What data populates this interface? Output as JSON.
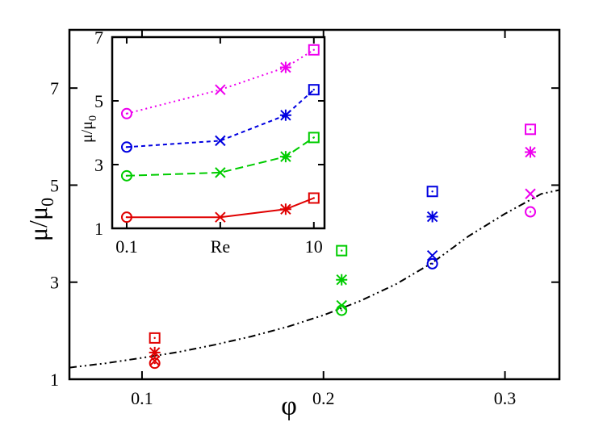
{
  "chart_data": [
    {
      "type": "scatter",
      "title": "",
      "xlabel": "φ",
      "ylabel": "μ/μ",
      "ylabel_subscript": "0",
      "xlim": [
        0.06,
        0.33
      ],
      "ylim": [
        1,
        8.2
      ],
      "xticks": [
        {
          "v": 0.1,
          "label": "0.1"
        },
        {
          "v": 0.2,
          "label": "0.2"
        },
        {
          "v": 0.3,
          "label": "0.3"
        }
      ],
      "yticks": [
        {
          "v": 1,
          "label": "1"
        },
        {
          "v": 3,
          "label": "3"
        },
        {
          "v": 5,
          "label": "5"
        },
        {
          "v": 7,
          "label": "7"
        }
      ],
      "grid": false,
      "legend": "none",
      "series": [
        {
          "color": "#e00000",
          "points": [
            {
              "x": 0.107,
              "y": 1.33,
              "marker": "circle"
            },
            {
              "x": 0.107,
              "y": 1.38,
              "marker": "x"
            },
            {
              "x": 0.107,
              "y": 1.55,
              "marker": "star"
            },
            {
              "x": 0.107,
              "y": 1.85,
              "marker": "square"
            }
          ]
        },
        {
          "color": "#00cc00",
          "points": [
            {
              "x": 0.21,
              "y": 2.42,
              "marker": "circle"
            },
            {
              "x": 0.21,
              "y": 2.52,
              "marker": "x"
            },
            {
              "x": 0.21,
              "y": 3.05,
              "marker": "star"
            },
            {
              "x": 0.21,
              "y": 3.65,
              "marker": "square"
            }
          ]
        },
        {
          "color": "#0000e0",
          "points": [
            {
              "x": 0.26,
              "y": 3.38,
              "marker": "circle"
            },
            {
              "x": 0.26,
              "y": 3.55,
              "marker": "x"
            },
            {
              "x": 0.26,
              "y": 4.35,
              "marker": "star"
            },
            {
              "x": 0.26,
              "y": 4.87,
              "marker": "square"
            }
          ]
        },
        {
          "color": "#ee00ee",
          "points": [
            {
              "x": 0.314,
              "y": 4.45,
              "marker": "circle"
            },
            {
              "x": 0.314,
              "y": 4.82,
              "marker": "x"
            },
            {
              "x": 0.314,
              "y": 5.68,
              "marker": "star"
            },
            {
              "x": 0.314,
              "y": 6.15,
              "marker": "square"
            }
          ]
        }
      ],
      "curve": {
        "color": "#000000",
        "style": "dash-dot-dot",
        "x": [
          0.06,
          0.08,
          0.1,
          0.12,
          0.14,
          0.16,
          0.18,
          0.2,
          0.22,
          0.24,
          0.26,
          0.28,
          0.3,
          0.32,
          0.33
        ],
        "y": [
          1.24,
          1.33,
          1.44,
          1.56,
          1.71,
          1.88,
          2.08,
          2.32,
          2.61,
          2.96,
          3.4,
          3.95,
          4.41,
          4.82,
          4.9
        ]
      }
    },
    {
      "type": "line",
      "title": "",
      "xlabel": "",
      "ylabel": "μ/μ",
      "ylabel_subscript": "0",
      "xscale": "log",
      "xlim": [
        0.07,
        13
      ],
      "ylim": [
        1,
        7
      ],
      "xticks": [
        {
          "v": 0.1,
          "label": "0.1"
        },
        {
          "v": 1,
          "label": "Re"
        },
        {
          "v": 10,
          "label": "10"
        }
      ],
      "yticks": [
        {
          "v": 1,
          "label": "1"
        },
        {
          "v": 3,
          "label": "3"
        },
        {
          "v": 5,
          "label": "5"
        },
        {
          "v": 7,
          "label": "7"
        }
      ],
      "grid": false,
      "legend": "none",
      "x": [
        0.1,
        1,
        5,
        10
      ],
      "markers": [
        "circle",
        "x",
        "star",
        "square"
      ],
      "series": [
        {
          "color": "#e00000",
          "style": "solid",
          "values": [
            1.35,
            1.35,
            1.6,
            1.95
          ]
        },
        {
          "color": "#00cc00",
          "style": "dashed",
          "values": [
            2.65,
            2.75,
            3.25,
            3.85
          ]
        },
        {
          "color": "#0000e0",
          "style": "dashed-short",
          "values": [
            3.55,
            3.75,
            4.55,
            5.35
          ]
        },
        {
          "color": "#ee00ee",
          "style": "dotted",
          "values": [
            4.6,
            5.35,
            6.05,
            6.6
          ]
        }
      ]
    }
  ]
}
